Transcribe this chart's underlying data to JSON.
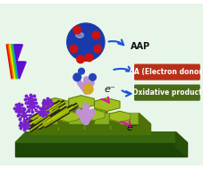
{
  "bg_color": "#e8f5e9",
  "border_color": "#90c890",
  "labels": {
    "AAP": "AAP",
    "AA": "AA (Electron donor)",
    "oxidative": "Oxidative product",
    "e1": "e⁻",
    "e2": "e⁻"
  },
  "label_colors": {
    "AA_bg": "#b83018",
    "ox_bg": "#4a6a18",
    "text_white": "#ffffff",
    "text_black": "#111111"
  },
  "colors": {
    "sphere_main": "#1a3aaa",
    "sphere_spot": "#cc1111",
    "antibody": "#c090d0",
    "gold_dot": "#d4a820",
    "blue_small": "#2244bb",
    "nanotube_dark": "#1a1a1a",
    "nanotube_yellow": "#b8d000",
    "hex_top": "#a0c020",
    "hex_side_dark": "#507008",
    "hex_side_mid": "#6a9010",
    "platform_top": "#88b020",
    "platform_side": "#4a7008",
    "base_top": "#3a6a10",
    "base_dark": "#285008",
    "slab_top": "#386510",
    "slab_front": "#1e4508",
    "slab_shadow": "#305a0a",
    "arrow_blue": "#1a55dd",
    "arrow_pink": "#dd1899",
    "purple_burst": "#7722cc",
    "lightning": [
      "#dd0000",
      "#ee6600",
      "#eeee00",
      "#44cc00",
      "#0099ee",
      "#6600cc"
    ]
  },
  "figsize": [
    2.37,
    1.89
  ],
  "dpi": 100
}
